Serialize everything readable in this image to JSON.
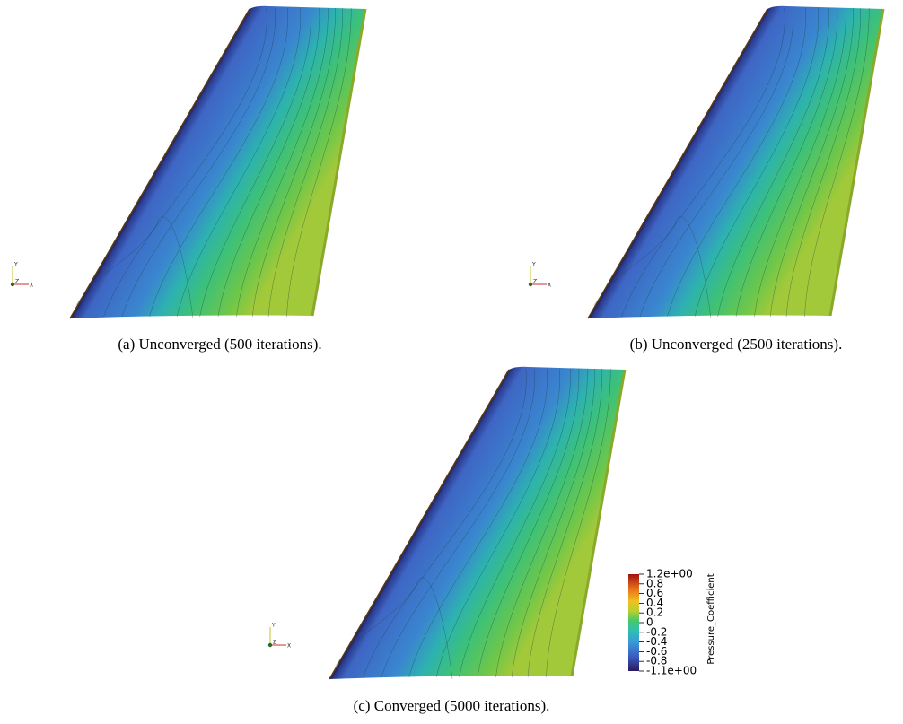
{
  "panels": [
    {
      "caption": "(a) Unconverged (500 iterations).",
      "axes": {
        "y": "Y",
        "z": "Z",
        "x": "X"
      }
    },
    {
      "caption": "(b) Unconverged (2500 iterations).",
      "axes": {
        "y": "Y",
        "z": "Z",
        "x": "X"
      }
    },
    {
      "caption": "(c) Converged (5000 iterations).",
      "axes": {
        "y": "Y",
        "z": "Z",
        "x": "X"
      }
    }
  ],
  "colorbar": {
    "title": "Pressure_Coefficient",
    "labels": [
      "1.2e+00",
      "0.8",
      "0.6",
      "0.4",
      "0.2",
      "0",
      "-0.2",
      "-0.4",
      "-0.6",
      "-0.8",
      "-1.1e+00"
    ]
  }
}
